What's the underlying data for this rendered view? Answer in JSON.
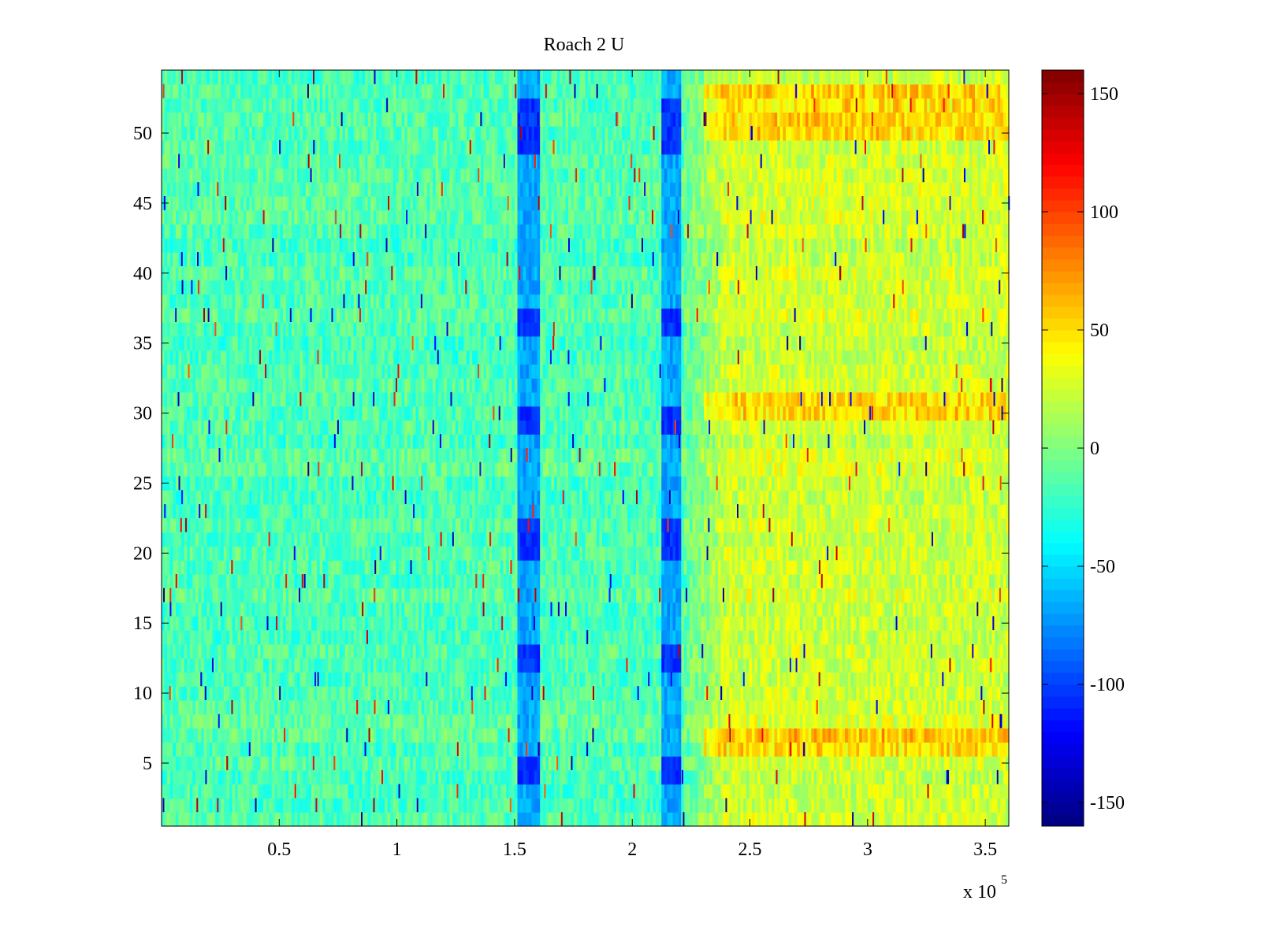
{
  "chart_data": {
    "type": "heatmap",
    "title": "Roach 2 U",
    "xlabel": "",
    "ylabel": "",
    "x_multiplier_label": "x 10",
    "x_multiplier_exponent": "5",
    "xlim": [
      0,
      360000
    ],
    "ylim": [
      0.5,
      54.5
    ],
    "x_ticks": [
      {
        "value": 50000,
        "label": "0.5"
      },
      {
        "value": 100000,
        "label": "1"
      },
      {
        "value": 150000,
        "label": "1.5"
      },
      {
        "value": 200000,
        "label": "2"
      },
      {
        "value": 250000,
        "label": "2.5"
      },
      {
        "value": 300000,
        "label": "3"
      },
      {
        "value": 350000,
        "label": "3.5"
      }
    ],
    "y_ticks": [
      {
        "value": 5,
        "label": "5"
      },
      {
        "value": 10,
        "label": "10"
      },
      {
        "value": 15,
        "label": "15"
      },
      {
        "value": 20,
        "label": "20"
      },
      {
        "value": 25,
        "label": "25"
      },
      {
        "value": 30,
        "label": "30"
      },
      {
        "value": 35,
        "label": "35"
      },
      {
        "value": 40,
        "label": "40"
      },
      {
        "value": 45,
        "label": "45"
      },
      {
        "value": 50,
        "label": "50"
      }
    ],
    "rows": 54,
    "colormap": "jet",
    "colorbar": {
      "clim": [
        -160,
        160
      ],
      "ticks": [
        {
          "value": 150,
          "label": "150"
        },
        {
          "value": 100,
          "label": "100"
        },
        {
          "value": 50,
          "label": "50"
        },
        {
          "value": 0,
          "label": "0"
        },
        {
          "value": -50,
          "label": "-50"
        },
        {
          "value": -100,
          "label": "-100"
        },
        {
          "value": -150,
          "label": "-150"
        }
      ]
    },
    "features": {
      "baseline_left": -15,
      "baseline_right": 25,
      "transition_x": [
        220000,
        240000
      ],
      "low_bands": [
        {
          "x_range": [
            151000,
            161000
          ],
          "value": -95
        },
        {
          "x_range": [
            212000,
            221000
          ],
          "value": -95
        }
      ],
      "strong_low_rows": [
        4,
        5,
        12,
        13,
        20,
        21,
        22,
        29,
        30,
        36,
        37,
        49,
        50,
        51,
        52
      ],
      "high_rows_right": [
        6,
        7,
        30,
        31,
        50,
        51,
        52,
        53
      ]
    }
  }
}
